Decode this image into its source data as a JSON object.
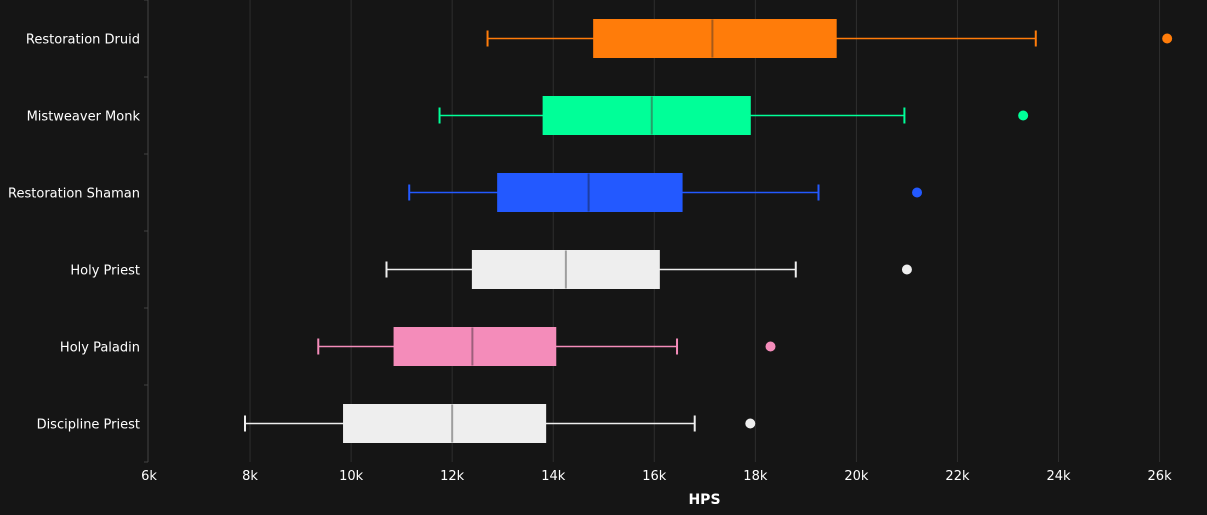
{
  "chart_data": {
    "type": "boxplot",
    "orientation": "horizontal",
    "xlabel": "HPS",
    "xlim": [
      6000,
      26800
    ],
    "ticks": [
      {
        "value": 6000,
        "label": "6k"
      },
      {
        "value": 8000,
        "label": "8k"
      },
      {
        "value": 10000,
        "label": "10k"
      },
      {
        "value": 12000,
        "label": "12k"
      },
      {
        "value": 14000,
        "label": "14k"
      },
      {
        "value": 16000,
        "label": "16k"
      },
      {
        "value": 18000,
        "label": "18k"
      },
      {
        "value": 20000,
        "label": "20k"
      },
      {
        "value": 22000,
        "label": "22k"
      },
      {
        "value": 24000,
        "label": "24k"
      },
      {
        "value": 26000,
        "label": "26k"
      }
    ],
    "grid": true,
    "series": [
      {
        "name": "Restoration Druid",
        "color": "#ff7c0a",
        "median_color": "#a65a1a",
        "min": 12700,
        "q1": 14800,
        "median": 17150,
        "q3": 19600,
        "max": 23550,
        "outlier": 26150
      },
      {
        "name": "Mistweaver Monk",
        "color": "#00ff98",
        "median_color": "#26a06a",
        "min": 11750,
        "q1": 13800,
        "median": 15950,
        "q3": 17900,
        "max": 20950,
        "outlier": 23300
      },
      {
        "name": "Restoration Shaman",
        "color": "#2359ff",
        "median_color": "#1d3ea3",
        "min": 11150,
        "q1": 12900,
        "median": 14700,
        "q3": 16550,
        "max": 19250,
        "outlier": 21200
      },
      {
        "name": "Holy Priest",
        "color": "#eeeeee",
        "median_color": "#9e9e9e",
        "min": 10700,
        "q1": 12400,
        "median": 14250,
        "q3": 16100,
        "max": 18800,
        "outlier": 21000
      },
      {
        "name": "Holy Paladin",
        "color": "#f48cba",
        "median_color": "#9d5f7b",
        "min": 9350,
        "q1": 10850,
        "median": 12400,
        "q3": 14050,
        "max": 16450,
        "outlier": 18300
      },
      {
        "name": "Discipline Priest",
        "color": "#eeeeee",
        "median_color": "#9e9e9e",
        "min": 7900,
        "q1": 9850,
        "median": 12000,
        "q3": 13850,
        "max": 16800,
        "outlier": 17900
      }
    ]
  }
}
